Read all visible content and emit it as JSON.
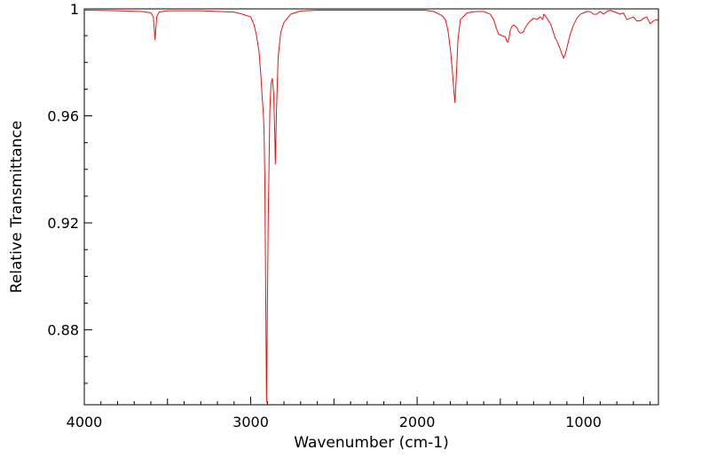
{
  "chart_data": {
    "type": "line",
    "title": "",
    "xlabel": "Wavenumber (cm-1)",
    "ylabel": "Relative Transmittance",
    "xlim": [
      4000,
      550
    ],
    "ylim": [
      0.852,
      1.0
    ],
    "x_reversed": true,
    "grid": false,
    "legend": "none",
    "x_ticks": [
      {
        "value": 4000,
        "label": "4000"
      },
      {
        "value": 3000,
        "label": "3000"
      },
      {
        "value": 2000,
        "label": "2000"
      },
      {
        "value": 1000,
        "label": "1000"
      }
    ],
    "y_ticks": [
      {
        "value": 1.0,
        "label": "1"
      },
      {
        "value": 0.96,
        "label": "0.96"
      },
      {
        "value": 0.92,
        "label": "0.92"
      },
      {
        "value": 0.88,
        "label": "0.88"
      }
    ],
    "series": [
      {
        "color": "#ee1111",
        "x": [
          4000,
          3800,
          3650,
          3600,
          3585,
          3575,
          3565,
          3550,
          3500,
          3300,
          3100,
          3050,
          3000,
          2980,
          2965,
          2950,
          2940,
          2930,
          2925,
          2920,
          2915,
          2905,
          2895,
          2885,
          2878,
          2870,
          2862,
          2856,
          2852,
          2845,
          2835,
          2820,
          2800,
          2760,
          2700,
          2600,
          2400,
          2200,
          1950,
          1900,
          1850,
          1830,
          1815,
          1800,
          1790,
          1780,
          1773,
          1765,
          1755,
          1740,
          1700,
          1650,
          1600,
          1560,
          1540,
          1525,
          1510,
          1490,
          1470,
          1462,
          1455,
          1448,
          1440,
          1430,
          1420,
          1410,
          1400,
          1390,
          1380,
          1370,
          1360,
          1350,
          1340,
          1320,
          1300,
          1280,
          1260,
          1245,
          1240,
          1230,
          1220,
          1210,
          1200,
          1190,
          1180,
          1170,
          1160,
          1150,
          1140,
          1130,
          1125,
          1120,
          1115,
          1110,
          1100,
          1090,
          1080,
          1060,
          1040,
          1020,
          1000,
          980,
          960,
          940,
          920,
          900,
          880,
          860,
          840,
          820,
          800,
          780,
          760,
          740,
          720,
          700,
          680,
          660,
          640,
          620,
          600,
          580,
          560,
          550
        ],
        "y": [
          0.9995,
          0.9993,
          0.999,
          0.9985,
          0.997,
          0.9885,
          0.997,
          0.9988,
          0.9993,
          0.9993,
          0.9988,
          0.998,
          0.997,
          0.994,
          0.99,
          0.984,
          0.976,
          0.966,
          0.962,
          0.955,
          0.935,
          0.853,
          0.92,
          0.962,
          0.972,
          0.974,
          0.968,
          0.955,
          0.942,
          0.962,
          0.982,
          0.991,
          0.995,
          0.998,
          0.9992,
          0.9995,
          0.9995,
          0.9995,
          0.9995,
          0.999,
          0.9975,
          0.996,
          0.992,
          0.985,
          0.978,
          0.97,
          0.965,
          0.974,
          0.988,
          0.996,
          0.9985,
          0.999,
          0.999,
          0.998,
          0.996,
          0.993,
          0.9905,
          0.99,
          0.9895,
          0.988,
          0.9875,
          0.989,
          0.992,
          0.9935,
          0.994,
          0.9935,
          0.993,
          0.9915,
          0.991,
          0.991,
          0.9915,
          0.993,
          0.994,
          0.9955,
          0.9965,
          0.996,
          0.997,
          0.996,
          0.998,
          0.9975,
          0.9965,
          0.9955,
          0.9945,
          0.993,
          0.991,
          0.989,
          0.988,
          0.9865,
          0.985,
          0.983,
          0.9825,
          0.9815,
          0.9825,
          0.983,
          0.9855,
          0.988,
          0.9905,
          0.994,
          0.9965,
          0.998,
          0.9985,
          0.999,
          0.999,
          0.998,
          0.998,
          0.999,
          0.998,
          0.999,
          0.9995,
          0.999,
          0.9985,
          0.998,
          0.9985,
          0.996,
          0.9965,
          0.997,
          0.9955,
          0.9955,
          0.9965,
          0.997,
          0.9945,
          0.9955,
          0.996,
          0.9955
        ]
      }
    ]
  }
}
